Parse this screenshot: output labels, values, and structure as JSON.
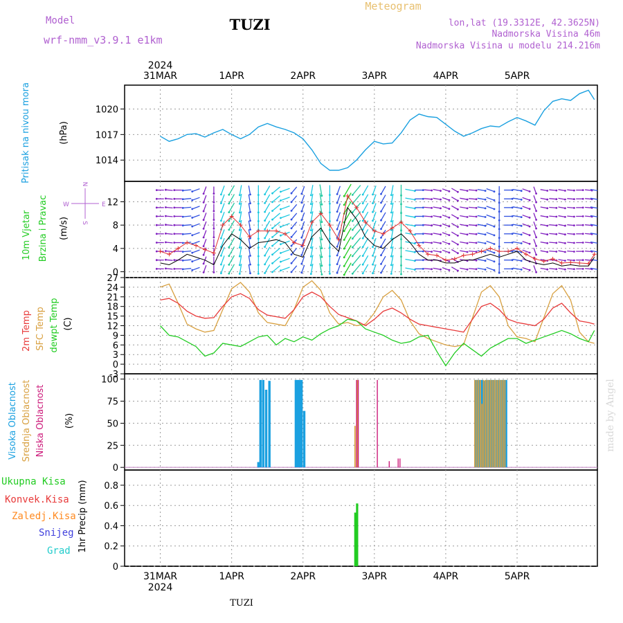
{
  "header": {
    "model_label": "Model",
    "model_name": "wrf-nmm_v3.9.1 e1km",
    "station": "TUZI",
    "chart_title": "Meteogram",
    "lonlat": "lon,lat (19.3312E, 42.3625N)",
    "elevation": "Nadmorska Visina 46m",
    "model_elevation": "Nadmorska Visina u modelu 214.216m",
    "footer_station": "TUZI",
    "watermark": "made by Angel"
  },
  "colors": {
    "pressure": "#1aa0e0",
    "wind_speed": "#000000",
    "gust": "#e03030",
    "temp2m": "#e83a3a",
    "sfc_temp": "#d8a040",
    "dewpoint": "#22cc22",
    "cloud_high": "#1aa0e0",
    "cloud_mid": "#d8a040",
    "cloud_low": "#cc1a7a",
    "precip_total": "#22cc22",
    "precip_conv": "#e83a3a",
    "precip_frozen": "#ff8a20",
    "snow": "#4040dd",
    "graupel": "#22cccc",
    "barb_purple": "#8020c0",
    "barb_blue": "#3050e0",
    "barb_cyan": "#1ac8e0",
    "barb_teal": "#20c8a0",
    "barb_green": "#22cc22",
    "label_purple": "#b060d0",
    "title_gold": "#e8c070"
  },
  "chart_data": [
    {
      "type": "line",
      "panel": "pressure",
      "ylabel_main": "Pritisak na nivou mora",
      "ylabel_unit": "(hPa)",
      "yticks": [
        1014,
        1017,
        1020
      ],
      "ylim": [
        1011.5,
        1022.8
      ],
      "x_dates_top": [
        "2024",
        "31MAR",
        "1APR",
        "2APR",
        "3APR",
        "4APR",
        "5APR"
      ],
      "series": [
        {
          "x": [
            0,
            3,
            6,
            9,
            12,
            15,
            18,
            21,
            24,
            27,
            30,
            33,
            36,
            39,
            42,
            45,
            48,
            51,
            54,
            57,
            60,
            63,
            66,
            69,
            72,
            75,
            78,
            81,
            84,
            87,
            90,
            93,
            96,
            99,
            102,
            105,
            108,
            111,
            114,
            117,
            120,
            123,
            126,
            129,
            132,
            135,
            138,
            141,
            144,
            146
          ],
          "values": [
            1016.8,
            1016.2,
            1016.5,
            1017.0,
            1017.1,
            1016.7,
            1017.2,
            1017.6,
            1017.0,
            1016.5,
            1017.0,
            1017.9,
            1018.3,
            1017.9,
            1017.6,
            1017.2,
            1016.5,
            1015.2,
            1013.6,
            1012.8,
            1012.8,
            1013.1,
            1014.0,
            1015.2,
            1016.2,
            1015.9,
            1016.0,
            1017.2,
            1018.7,
            1019.4,
            1019.1,
            1019.0,
            1018.2,
            1017.4,
            1016.8,
            1017.2,
            1017.7,
            1018.0,
            1017.9,
            1018.5,
            1019.0,
            1018.6,
            1018.1,
            1019.8,
            1020.9,
            1021.2,
            1021.0,
            1021.8,
            1022.2,
            1021.1
          ]
        }
      ]
    },
    {
      "type": "line",
      "panel": "wind",
      "ylabel_main": "10m Vjetar",
      "ylabel_sub": "Brzina i Pravac",
      "ylabel_unit": "(m/s)",
      "compass_labels": {
        "w": "W",
        "e": "E",
        "n": "N",
        "s": "S"
      },
      "yticks": [
        0,
        4,
        8,
        12
      ],
      "ylim": [
        -1,
        15.5
      ],
      "speed_x": [
        0,
        3,
        6,
        9,
        12,
        15,
        18,
        21,
        24,
        27,
        30,
        33,
        36,
        39,
        42,
        45,
        48,
        51,
        54,
        57,
        60,
        63,
        66,
        69,
        72,
        75,
        78,
        81,
        84,
        87,
        90,
        93,
        96,
        99,
        102,
        105,
        108,
        111,
        114,
        117,
        120,
        123,
        126,
        129,
        132,
        135,
        138,
        141,
        144,
        146
      ],
      "speed_values": [
        1.5,
        1.2,
        2.0,
        3.0,
        2.5,
        2.0,
        1.2,
        4.5,
        6.5,
        5.5,
        4.0,
        5.0,
        5.2,
        5.5,
        5.0,
        3.0,
        2.5,
        6.0,
        7.5,
        5.0,
        3.5,
        11.0,
        9.0,
        6.0,
        4.5,
        4.0,
        5.5,
        6.5,
        5.0,
        3.0,
        2.0,
        2.0,
        1.5,
        1.5,
        2.0,
        2.0,
        2.5,
        3.0,
        2.5,
        3.0,
        3.5,
        2.0,
        1.5,
        1.2,
        1.5,
        1.0,
        1.2,
        1.0,
        1.0,
        2.5
      ],
      "gust_values": [
        3.5,
        3.0,
        4.0,
        5.0,
        4.5,
        3.8,
        3.2,
        8.0,
        9.5,
        8.0,
        6.0,
        7.0,
        7.0,
        7.0,
        6.5,
        5.0,
        4.5,
        8.5,
        10.0,
        8.0,
        5.5,
        13.0,
        11.0,
        8.5,
        7.0,
        6.5,
        7.5,
        8.5,
        7.0,
        4.5,
        3.0,
        2.8,
        2.0,
        2.2,
        2.8,
        3.0,
        3.5,
        4.0,
        3.5,
        3.5,
        4.0,
        3.0,
        2.2,
        1.8,
        2.2,
        1.5,
        1.6,
        1.5,
        1.4,
        3.0
      ],
      "dir_deg": [
        270,
        275,
        270,
        265,
        250,
        200,
        180,
        200,
        210,
        190,
        170,
        180,
        210,
        230,
        250,
        220,
        200,
        190,
        170,
        180,
        200,
        210,
        220,
        210,
        200,
        210,
        190,
        180,
        100,
        90,
        95,
        100,
        110,
        120,
        100,
        95,
        100,
        110,
        180,
        90,
        100,
        110,
        160,
        100,
        95,
        100,
        95,
        90,
        95,
        100
      ]
    },
    {
      "type": "line",
      "panel": "temperature",
      "ylabel_temp": "2m Temp",
      "ylabel_sfc": "SFC Temp",
      "ylabel_dew": "dewpt Temp",
      "ylabel_unit": "(C)",
      "yticks": [
        -3,
        0,
        3,
        6,
        9,
        12,
        15,
        18,
        21,
        24,
        27
      ],
      "ylim": [
        -3,
        27
      ],
      "series": [
        {
          "name": "2m Temp",
          "x": [
            0,
            3,
            6,
            9,
            12,
            15,
            18,
            21,
            24,
            27,
            30,
            33,
            36,
            39,
            42,
            45,
            48,
            51,
            54,
            57,
            60,
            63,
            66,
            69,
            72,
            75,
            78,
            81,
            84,
            87,
            90,
            93,
            96,
            99,
            102,
            105,
            108,
            111,
            114,
            117,
            120,
            123,
            126,
            129,
            132,
            135,
            138,
            141,
            144,
            146
          ],
          "values": [
            20.0,
            20.5,
            19.0,
            16.5,
            15.0,
            14.3,
            14.5,
            18.0,
            21.0,
            22.0,
            20.5,
            17.0,
            15.3,
            14.8,
            14.3,
            17.0,
            21.0,
            22.5,
            21.0,
            18.0,
            15.5,
            14.5,
            13.5,
            12.0,
            14.0,
            16.5,
            17.5,
            16.0,
            14.0,
            12.5,
            12.0,
            11.5,
            11.0,
            10.5,
            10.0,
            14.0,
            18.0,
            19.0,
            17.0,
            14.0,
            13.0,
            12.5,
            12.0,
            14.0,
            17.5,
            19.0,
            16.0,
            13.5,
            13.0,
            12.5
          ]
        },
        {
          "name": "SFC Temp",
          "x": [
            0,
            3,
            6,
            9,
            12,
            15,
            18,
            21,
            24,
            27,
            30,
            33,
            36,
            39,
            42,
            45,
            48,
            51,
            54,
            57,
            60,
            63,
            66,
            69,
            72,
            75,
            78,
            81,
            84,
            87,
            90,
            93,
            96,
            99,
            102,
            105,
            108,
            111,
            114,
            117,
            120,
            123,
            126,
            129,
            132,
            135,
            138,
            141,
            144,
            146
          ],
          "values": [
            24.0,
            25.0,
            19.0,
            12.5,
            11.0,
            10.0,
            10.5,
            17.0,
            23.5,
            25.5,
            22.5,
            16.0,
            13.0,
            12.5,
            12.0,
            17.0,
            24.0,
            26.0,
            23.0,
            16.0,
            12.5,
            13.0,
            12.0,
            12.5,
            16.0,
            21.0,
            23.0,
            20.0,
            13.5,
            9.5,
            8.0,
            7.0,
            6.0,
            5.5,
            6.0,
            14.5,
            22.5,
            24.5,
            21.0,
            12.0,
            8.5,
            8.0,
            7.0,
            14.5,
            22.0,
            24.5,
            20.0,
            10.0,
            7.0,
            6.5
          ]
        },
        {
          "name": "dewpt Temp",
          "x": [
            0,
            3,
            6,
            9,
            12,
            15,
            18,
            21,
            24,
            27,
            30,
            33,
            36,
            39,
            42,
            45,
            48,
            51,
            54,
            57,
            60,
            63,
            66,
            69,
            72,
            75,
            78,
            81,
            84,
            87,
            90,
            93,
            96,
            99,
            102,
            105,
            108,
            111,
            114,
            117,
            120,
            123,
            126,
            129,
            132,
            135,
            138,
            141,
            144,
            146
          ],
          "values": [
            12.0,
            9.0,
            8.5,
            7.0,
            5.5,
            2.5,
            3.5,
            6.5,
            6.0,
            5.5,
            7.0,
            8.5,
            9.0,
            6.0,
            8.0,
            7.0,
            8.5,
            7.5,
            9.5,
            11.0,
            12.0,
            14.0,
            13.5,
            11.0,
            10.0,
            9.0,
            7.5,
            6.5,
            7.0,
            8.5,
            9.0,
            4.0,
            -0.5,
            3.5,
            6.5,
            4.5,
            2.5,
            5.0,
            6.5,
            8.0,
            8.0,
            6.5,
            7.5,
            8.5,
            9.5,
            10.5,
            9.5,
            8.0,
            7.0,
            10.5
          ]
        }
      ]
    },
    {
      "type": "bar",
      "panel": "clouds",
      "ylabel_high": "Visoka Oblacnost",
      "ylabel_mid": "Srednja Oblacnost",
      "ylabel_low": "Niska Oblacnost",
      "ylabel_unit": "(%)",
      "yticks": [
        0,
        25,
        50,
        75,
        100
      ],
      "ylim": [
        -3,
        106
      ],
      "series": [
        {
          "name": "Visoka Oblacnost",
          "x": [
            33.0,
            33.7,
            34.6,
            35.6,
            36.7,
            45.6,
            46.2,
            46.9,
            47.5,
            48.4,
            106.0,
            106.7,
            107.4,
            108.2,
            109.0,
            109.8,
            110.6,
            111.4,
            112.2,
            113.0,
            114.0,
            114.8,
            115.6,
            116.3
          ],
          "values": [
            6,
            99,
            99,
            88,
            98,
            99,
            99,
            99,
            99,
            64,
            99,
            99,
            99,
            99,
            98,
            99,
            99,
            99,
            99,
            99,
            99,
            99,
            99,
            99
          ]
        },
        {
          "name": "Srednja Oblacnost",
          "x": [
            65.5,
            66.3,
            105.8,
            106.4,
            107.0,
            107.6,
            108.2,
            108.7,
            109.3,
            109.9,
            110.5,
            111.1,
            111.7,
            112.3,
            112.9,
            113.5,
            114.1,
            114.7,
            115.3,
            115.9
          ],
          "values": [
            47,
            99,
            99,
            99,
            99,
            99,
            72,
            99,
            99,
            99,
            99,
            99,
            99,
            99,
            99,
            99,
            99,
            99,
            99,
            99
          ]
        },
        {
          "name": "Niska Oblacnost",
          "x": [
            66.0,
            66.6,
            73.0,
            77.0,
            80.0,
            80.6
          ],
          "values": [
            99,
            99,
            99,
            7,
            10,
            10
          ]
        }
      ]
    },
    {
      "type": "bar",
      "panel": "precip",
      "labels": [
        "Ukupna Kisa",
        "Konvek.Kisa",
        "Zaledj.Kisa",
        "Snijeg",
        "Grad"
      ],
      "ylabel_unit": "1hr Precip (mm)",
      "yticks": [
        0,
        0.2,
        0.4,
        0.6,
        0.8
      ],
      "ylim": [
        0,
        0.95
      ],
      "x_dates_bottom": [
        "31MAR",
        "1APR",
        "2APR",
        "3APR",
        "4APR",
        "5APR"
      ],
      "x_year_bottom": "2024",
      "series": [
        {
          "name": "Ukupna Kisa",
          "x": [
            65.6,
            66.2
          ],
          "values": [
            0.53,
            0.62
          ]
        }
      ]
    }
  ]
}
